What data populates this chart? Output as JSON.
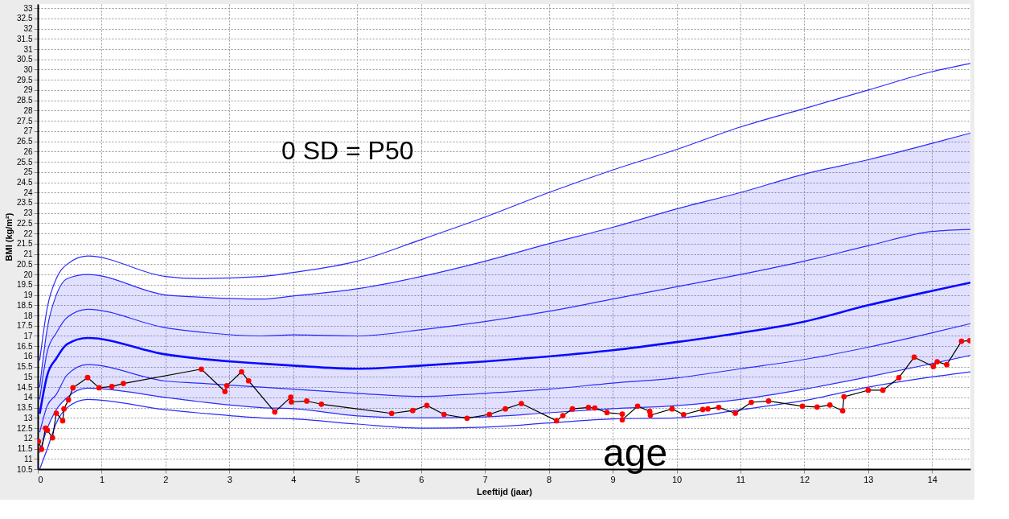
{
  "chart_data": {
    "type": "line",
    "xlabel": "Leeftijd (jaar)",
    "ylabel": "BMI (kg/m²)",
    "annotations": [
      "0 SD = P50",
      "age"
    ],
    "x": [
      0.03,
      0.15,
      0.29,
      0.46,
      0.78,
      2,
      2.5,
      3.5,
      4,
      5,
      6,
      7,
      8,
      9,
      10,
      11,
      12,
      13,
      14,
      14.6
    ],
    "series": [
      {
        "color": "#2a2aff",
        "values": [
          15.8,
          18.4,
          19.8,
          20.5,
          20.9,
          19.9,
          19.8,
          19.9,
          20.1,
          20.65,
          21.7,
          22.8,
          24.0,
          25.1,
          26.1,
          27.2,
          28.1,
          29.0,
          29.9,
          30.3
        ]
      },
      {
        "color": "#2a2aff",
        "values": [
          14.5,
          17.4,
          19.0,
          19.8,
          20.0,
          19.0,
          18.9,
          18.8,
          18.95,
          19.3,
          19.9,
          20.65,
          21.5,
          22.3,
          23.2,
          24.0,
          24.9,
          25.6,
          26.4,
          26.9
        ]
      },
      {
        "color": "#2a2aff",
        "values": [
          13.9,
          16.25,
          17.15,
          17.9,
          18.3,
          17.4,
          17.2,
          17.0,
          17.05,
          17.0,
          17.3,
          17.7,
          18.2,
          18.8,
          19.4,
          20.0,
          20.65,
          21.4,
          22.1,
          22.2
        ]
      },
      {
        "color": "#0a0aff",
        "values": [
          13.2,
          15.1,
          15.9,
          16.6,
          16.9,
          16.1,
          15.9,
          15.65,
          15.55,
          15.4,
          15.55,
          15.75,
          16.0,
          16.3,
          16.7,
          17.15,
          17.7,
          18.5,
          19.2,
          19.6
        ],
        "lower": [
          11.3,
          12.5,
          13.4,
          14.0,
          14.45,
          14.0,
          13.8,
          13.5,
          13.45,
          13.1,
          13.0,
          13.05,
          13.25,
          13.45,
          13.6,
          13.9,
          14.4,
          15.0,
          15.65,
          16.05
        ],
        "upper": [
          14.5,
          17.4,
          19.0,
          19.8,
          20.0,
          19.0,
          18.9,
          18.8,
          18.95,
          19.3,
          19.9,
          20.65,
          21.5,
          22.3,
          23.2,
          24.0,
          24.9,
          25.6,
          26.4,
          26.9
        ]
      },
      {
        "color": "#2a2aff",
        "values": [
          12.3,
          13.6,
          14.15,
          15.1,
          15.6,
          14.8,
          14.7,
          14.5,
          14.4,
          14.2,
          14.05,
          14.2,
          14.4,
          14.7,
          14.95,
          15.4,
          15.85,
          16.45,
          17.15,
          17.6
        ]
      },
      {
        "color": "#2a2aff",
        "values": [
          11.3,
          12.5,
          13.4,
          14.0,
          14.45,
          14.0,
          13.8,
          13.5,
          13.45,
          13.1,
          13.0,
          13.05,
          13.25,
          13.45,
          13.6,
          13.9,
          14.4,
          15.0,
          15.65,
          16.05
        ]
      },
      {
        "color": "#2a2aff",
        "values": [
          10.5,
          11.5,
          12.75,
          13.5,
          13.9,
          13.4,
          13.25,
          13.0,
          12.95,
          12.7,
          12.5,
          12.55,
          12.75,
          12.95,
          13.0,
          13.4,
          13.85,
          14.5,
          15.0,
          15.25
        ]
      },
      {
        "color": "#ff0000",
        "marker": "circle",
        "x": [
          0.01,
          0.06,
          0.12,
          0.15,
          0.23,
          0.29,
          0.39,
          0.41,
          0.48,
          0.55,
          0.78,
          0.96,
          1.16,
          1.34,
          2.56,
          2.93,
          2.96,
          3.19,
          3.3,
          3.71,
          3.96,
          3.97,
          4.21,
          4.44,
          5.54,
          5.87,
          6.09,
          6.36,
          6.72,
          7.07,
          7.32,
          7.57,
          8.12,
          8.22,
          8.37,
          8.62,
          8.72,
          8.91,
          9.15,
          9.15,
          9.39,
          9.58,
          9.59,
          9.93,
          10.11,
          10.41,
          10.49,
          10.66,
          10.92,
          11.17,
          11.44,
          11.97,
          12.2,
          12.4,
          12.6,
          12.62,
          13.0,
          13.23,
          13.48,
          13.72,
          14.02,
          14.08,
          14.23,
          14.46,
          14.59
        ],
        "values": [
          11.85,
          11.47,
          12.5,
          12.4,
          12.03,
          13.23,
          12.86,
          13.44,
          13.88,
          14.47,
          14.97,
          14.47,
          14.53,
          14.68,
          15.38,
          14.29,
          14.57,
          15.25,
          14.81,
          13.29,
          14.01,
          13.78,
          13.82,
          13.67,
          13.22,
          13.36,
          13.61,
          13.17,
          12.98,
          13.17,
          13.44,
          13.7,
          12.86,
          13.11,
          13.44,
          13.51,
          13.48,
          13.26,
          13.19,
          12.91,
          13.57,
          13.32,
          13.13,
          13.44,
          13.16,
          13.41,
          13.44,
          13.51,
          13.23,
          13.76,
          13.82,
          13.57,
          13.53,
          13.63,
          13.35,
          14.03,
          14.35,
          14.35,
          14.96,
          15.96,
          15.51,
          15.74,
          15.6,
          16.74,
          16.77
        ]
      }
    ],
    "xlim": [
      0,
      14.6
    ],
    "xticks": [
      0,
      1,
      2,
      3,
      4,
      5,
      6,
      7,
      8,
      9,
      10,
      11,
      12,
      13,
      14
    ],
    "ylim": [
      10.5,
      33.2
    ],
    "yticks": [
      10.5,
      11,
      11.5,
      12,
      12.5,
      13,
      13.5,
      14,
      14.5,
      15,
      15.5,
      16,
      16.5,
      17,
      17.5,
      18,
      18.5,
      19,
      19.5,
      20,
      20.5,
      21,
      21.5,
      22,
      22.5,
      23,
      23.5,
      24,
      24.5,
      25,
      25.5,
      26,
      26.5,
      27,
      27.5,
      28,
      28.5,
      29,
      29.5,
      30,
      30.5,
      31,
      31.5,
      32,
      32.5,
      33
    ],
    "grid": true
  }
}
